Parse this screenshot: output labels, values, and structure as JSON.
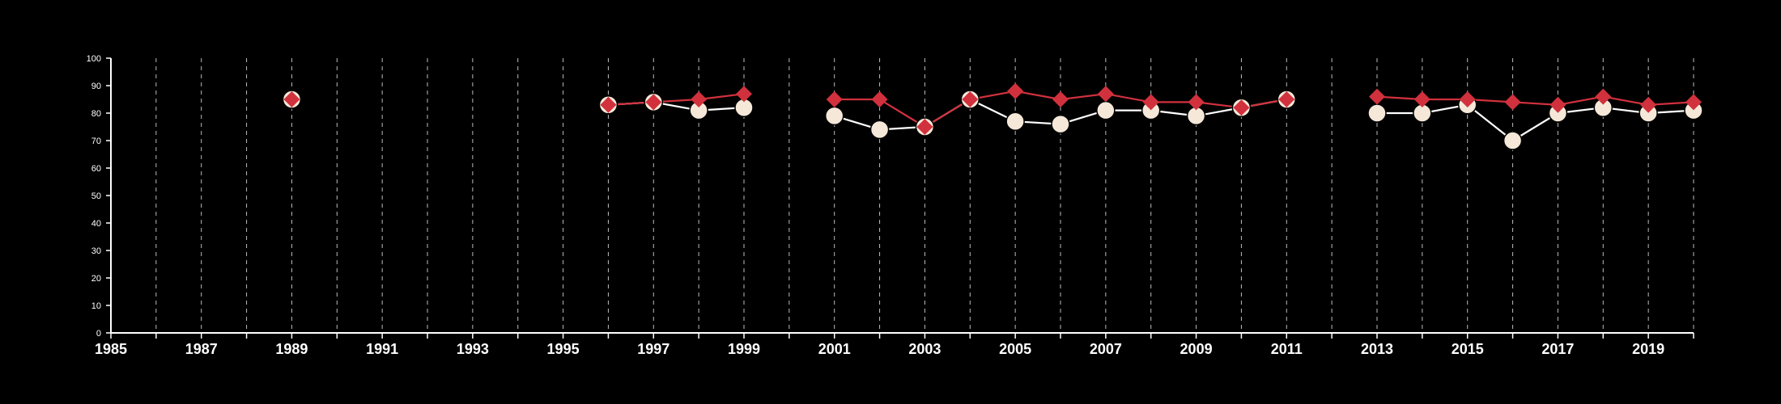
{
  "chart_data": {
    "type": "line",
    "title": "",
    "xlabel": "",
    "ylabel": "",
    "xlim": [
      1985,
      2020
    ],
    "ylim": [
      0,
      100
    ],
    "y_ticks": [
      0,
      10,
      20,
      30,
      40,
      50,
      60,
      70,
      80,
      90,
      100
    ],
    "x_ticks_major": [
      1985,
      1987,
      1989,
      1991,
      1993,
      1995,
      1997,
      1999,
      2001,
      2003,
      2005,
      2007,
      2009,
      2011,
      2013,
      2015,
      2017,
      2019
    ],
    "grid": "vertical dashed lines at every year",
    "legend": "none",
    "series": [
      {
        "marker": "circle",
        "color": "#ffffff",
        "marker_fill": "#f5e8d8",
        "segments": [
          [
            {
              "x": 1989,
              "y": 85
            }
          ],
          [
            {
              "x": 1996,
              "y": 83
            },
            {
              "x": 1997,
              "y": 84
            },
            {
              "x": 1998,
              "y": 81
            },
            {
              "x": 1999,
              "y": 82
            }
          ],
          [
            {
              "x": 2001,
              "y": 79
            },
            {
              "x": 2002,
              "y": 74
            },
            {
              "x": 2003,
              "y": 75
            },
            {
              "x": 2004,
              "y": 85
            },
            {
              "x": 2005,
              "y": 77
            },
            {
              "x": 2006,
              "y": 76
            },
            {
              "x": 2007,
              "y": 81
            },
            {
              "x": 2008,
              "y": 81
            },
            {
              "x": 2009,
              "y": 79
            },
            {
              "x": 2010,
              "y": 82
            },
            {
              "x": 2011,
              "y": 85
            }
          ],
          [
            {
              "x": 2013,
              "y": 80
            },
            {
              "x": 2014,
              "y": 80
            },
            {
              "x": 2015,
              "y": 83
            },
            {
              "x": 2016,
              "y": 70
            },
            {
              "x": 2017,
              "y": 80
            },
            {
              "x": 2018,
              "y": 82
            },
            {
              "x": 2019,
              "y": 80
            },
            {
              "x": 2020,
              "y": 81
            }
          ]
        ]
      },
      {
        "marker": "diamond",
        "color": "#d1313d",
        "marker_fill": "#d1313d",
        "segments": [
          [
            {
              "x": 1989,
              "y": 85
            }
          ],
          [
            {
              "x": 1996,
              "y": 83
            },
            {
              "x": 1997,
              "y": 84
            },
            {
              "x": 1998,
              "y": 85
            },
            {
              "x": 1999,
              "y": 87
            }
          ],
          [
            {
              "x": 2001,
              "y": 85
            },
            {
              "x": 2002,
              "y": 85
            },
            {
              "x": 2003,
              "y": 75
            },
            {
              "x": 2004,
              "y": 85
            },
            {
              "x": 2005,
              "y": 88
            },
            {
              "x": 2006,
              "y": 85
            },
            {
              "x": 2007,
              "y": 87
            },
            {
              "x": 2008,
              "y": 84
            },
            {
              "x": 2009,
              "y": 84
            },
            {
              "x": 2010,
              "y": 82
            },
            {
              "x": 2011,
              "y": 85
            }
          ],
          [
            {
              "x": 2013,
              "y": 86
            },
            {
              "x": 2014,
              "y": 85
            },
            {
              "x": 2015,
              "y": 85
            },
            {
              "x": 2016,
              "y": 84
            },
            {
              "x": 2017,
              "y": 83
            },
            {
              "x": 2018,
              "y": 86
            },
            {
              "x": 2019,
              "y": 83
            },
            {
              "x": 2020,
              "y": 84
            }
          ]
        ]
      }
    ]
  }
}
